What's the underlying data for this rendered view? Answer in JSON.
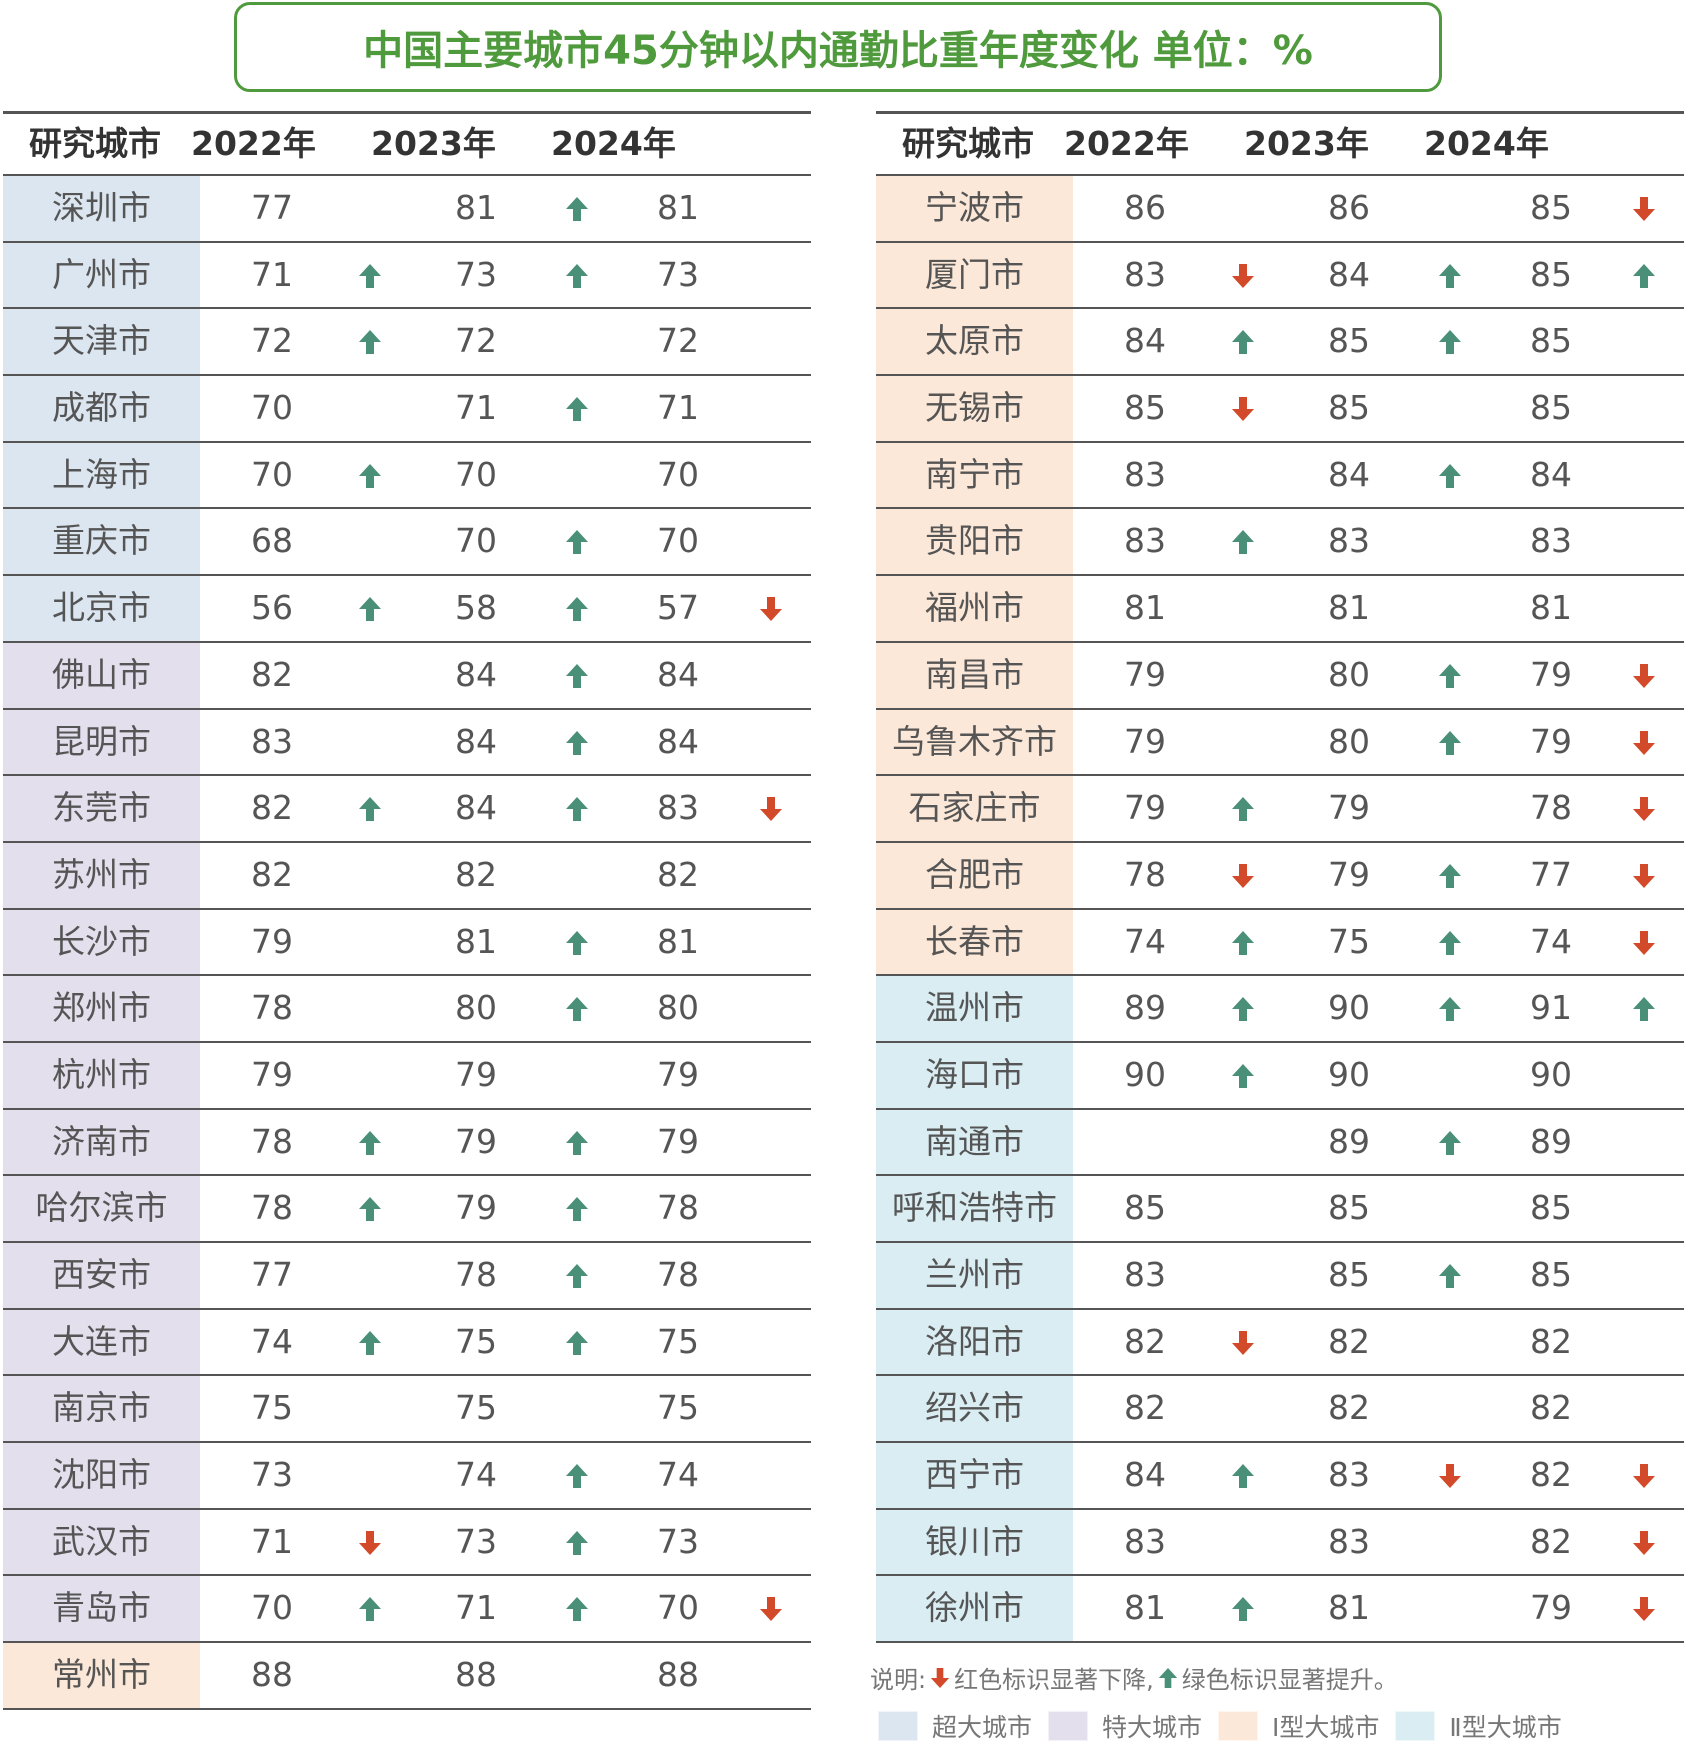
{
  "title": "中国主要城市45分钟以内通勤比重年度变化  单位：%",
  "headers": [
    "研究城市",
    "2022年",
    "2023年",
    "2024年"
  ],
  "colors": {
    "up": "#4a8f78",
    "down": "#d24a2a",
    "super": "#dce6f0",
    "mega": "#e3dfed",
    "type1": "#fce8d8",
    "type2": "#d9edf3"
  },
  "left": {
    "rows": [
      {
        "city": "深圳市",
        "type": "super",
        "v": [
          "77",
          "81",
          "81"
        ],
        "a": [
          "",
          "up",
          ""
        ]
      },
      {
        "city": "广州市",
        "type": "super",
        "v": [
          "71",
          "73",
          "73"
        ],
        "a": [
          "up",
          "up",
          ""
        ]
      },
      {
        "city": "天津市",
        "type": "super",
        "v": [
          "72",
          "72",
          "72"
        ],
        "a": [
          "up",
          "",
          ""
        ]
      },
      {
        "city": "成都市",
        "type": "super",
        "v": [
          "70",
          "71",
          "71"
        ],
        "a": [
          "",
          "up",
          ""
        ]
      },
      {
        "city": "上海市",
        "type": "super",
        "v": [
          "70",
          "70",
          "70"
        ],
        "a": [
          "up",
          "",
          ""
        ]
      },
      {
        "city": "重庆市",
        "type": "super",
        "v": [
          "68",
          "70",
          "70"
        ],
        "a": [
          "",
          "up",
          ""
        ]
      },
      {
        "city": "北京市",
        "type": "super",
        "v": [
          "56",
          "58",
          "57"
        ],
        "a": [
          "up",
          "up",
          "down"
        ]
      },
      {
        "city": "佛山市",
        "type": "mega",
        "v": [
          "82",
          "84",
          "84"
        ],
        "a": [
          "",
          "up",
          ""
        ]
      },
      {
        "city": "昆明市",
        "type": "mega",
        "v": [
          "83",
          "84",
          "84"
        ],
        "a": [
          "",
          "up",
          ""
        ]
      },
      {
        "city": "东莞市",
        "type": "mega",
        "v": [
          "82",
          "84",
          "83"
        ],
        "a": [
          "up",
          "up",
          "down"
        ]
      },
      {
        "city": "苏州市",
        "type": "mega",
        "v": [
          "82",
          "82",
          "82"
        ],
        "a": [
          "",
          "",
          ""
        ]
      },
      {
        "city": "长沙市",
        "type": "mega",
        "v": [
          "79",
          "81",
          "81"
        ],
        "a": [
          "",
          "up",
          ""
        ]
      },
      {
        "city": "郑州市",
        "type": "mega",
        "v": [
          "78",
          "80",
          "80"
        ],
        "a": [
          "",
          "up",
          ""
        ]
      },
      {
        "city": "杭州市",
        "type": "mega",
        "v": [
          "79",
          "79",
          "79"
        ],
        "a": [
          "",
          "",
          ""
        ]
      },
      {
        "city": "济南市",
        "type": "mega",
        "v": [
          "78",
          "79",
          "79"
        ],
        "a": [
          "up",
          "up",
          ""
        ]
      },
      {
        "city": "哈尔滨市",
        "type": "mega",
        "v": [
          "78",
          "79",
          "78"
        ],
        "a": [
          "up",
          "up",
          ""
        ]
      },
      {
        "city": "西安市",
        "type": "mega",
        "v": [
          "77",
          "78",
          "78"
        ],
        "a": [
          "",
          "up",
          ""
        ]
      },
      {
        "city": "大连市",
        "type": "mega",
        "v": [
          "74",
          "75",
          "75"
        ],
        "a": [
          "up",
          "up",
          ""
        ]
      },
      {
        "city": "南京市",
        "type": "mega",
        "v": [
          "75",
          "75",
          "75"
        ],
        "a": [
          "",
          "",
          ""
        ]
      },
      {
        "city": "沈阳市",
        "type": "mega",
        "v": [
          "73",
          "74",
          "74"
        ],
        "a": [
          "",
          "up",
          ""
        ]
      },
      {
        "city": "武汉市",
        "type": "mega",
        "v": [
          "71",
          "73",
          "73"
        ],
        "a": [
          "down",
          "up",
          ""
        ]
      },
      {
        "city": "青岛市",
        "type": "mega",
        "v": [
          "70",
          "71",
          "70"
        ],
        "a": [
          "up",
          "up",
          "down"
        ]
      },
      {
        "city": "常州市",
        "type": "type1",
        "v": [
          "88",
          "88",
          "88"
        ],
        "a": [
          "",
          "",
          ""
        ]
      }
    ]
  },
  "right": {
    "rows": [
      {
        "city": "宁波市",
        "type": "type1",
        "v": [
          "86",
          "86",
          "85"
        ],
        "a": [
          "",
          "",
          "down"
        ]
      },
      {
        "city": "厦门市",
        "type": "type1",
        "v": [
          "83",
          "84",
          "85"
        ],
        "a": [
          "down",
          "up",
          "up"
        ]
      },
      {
        "city": "太原市",
        "type": "type1",
        "v": [
          "84",
          "85",
          "85"
        ],
        "a": [
          "up",
          "up",
          ""
        ]
      },
      {
        "city": "无锡市",
        "type": "type1",
        "v": [
          "85",
          "85",
          "85"
        ],
        "a": [
          "down",
          "",
          ""
        ]
      },
      {
        "city": "南宁市",
        "type": "type1",
        "v": [
          "83",
          "84",
          "84"
        ],
        "a": [
          "",
          "up",
          ""
        ]
      },
      {
        "city": "贵阳市",
        "type": "type1",
        "v": [
          "83",
          "83",
          "83"
        ],
        "a": [
          "up",
          "",
          ""
        ]
      },
      {
        "city": "福州市",
        "type": "type1",
        "v": [
          "81",
          "81",
          "81"
        ],
        "a": [
          "",
          "",
          ""
        ]
      },
      {
        "city": "南昌市",
        "type": "type1",
        "v": [
          "79",
          "80",
          "79"
        ],
        "a": [
          "",
          "up",
          "down"
        ]
      },
      {
        "city": "乌鲁木齐市",
        "type": "type1",
        "v": [
          "79",
          "80",
          "79"
        ],
        "a": [
          "",
          "up",
          "down"
        ]
      },
      {
        "city": "石家庄市",
        "type": "type1",
        "v": [
          "79",
          "79",
          "78"
        ],
        "a": [
          "up",
          "",
          "down"
        ]
      },
      {
        "city": "合肥市",
        "type": "type1",
        "v": [
          "78",
          "79",
          "77"
        ],
        "a": [
          "down",
          "up",
          "down"
        ]
      },
      {
        "city": "长春市",
        "type": "type1",
        "v": [
          "74",
          "75",
          "74"
        ],
        "a": [
          "up",
          "up",
          "down"
        ]
      },
      {
        "city": "温州市",
        "type": "type2",
        "v": [
          "89",
          "90",
          "91"
        ],
        "a": [
          "up",
          "up",
          "up"
        ]
      },
      {
        "city": "海口市",
        "type": "type2",
        "v": [
          "90",
          "90",
          "90"
        ],
        "a": [
          "up",
          "",
          ""
        ]
      },
      {
        "city": "南通市",
        "type": "type2",
        "v": [
          "",
          "89",
          "89"
        ],
        "a": [
          "",
          "up",
          ""
        ]
      },
      {
        "city": "呼和浩特市",
        "type": "type2",
        "v": [
          "85",
          "85",
          "85"
        ],
        "a": [
          "",
          "",
          ""
        ]
      },
      {
        "city": "兰州市",
        "type": "type2",
        "v": [
          "83",
          "85",
          "85"
        ],
        "a": [
          "",
          "up",
          ""
        ]
      },
      {
        "city": "洛阳市",
        "type": "type2",
        "v": [
          "82",
          "82",
          "82"
        ],
        "a": [
          "down",
          "",
          ""
        ]
      },
      {
        "city": "绍兴市",
        "type": "type2",
        "v": [
          "82",
          "82",
          "82"
        ],
        "a": [
          "",
          "",
          ""
        ]
      },
      {
        "city": "西宁市",
        "type": "type2",
        "v": [
          "84",
          "83",
          "82"
        ],
        "a": [
          "up",
          "down",
          "down"
        ]
      },
      {
        "city": "银川市",
        "type": "type2",
        "v": [
          "83",
          "83",
          "82"
        ],
        "a": [
          "",
          "",
          "down"
        ]
      },
      {
        "city": "徐州市",
        "type": "type2",
        "v": [
          "81",
          "81",
          "79"
        ],
        "a": [
          "up",
          "",
          "down"
        ]
      }
    ]
  },
  "note": {
    "prefix": "说明:",
    "down_text": "红色标识显著下降,",
    "up_text": "绿色标识显著提升。"
  },
  "legend": [
    {
      "key": "super",
      "label": "超大城市"
    },
    {
      "key": "mega",
      "label": "特大城市"
    },
    {
      "key": "type1",
      "label": "Ⅰ型大城市"
    },
    {
      "key": "type2",
      "label": "Ⅱ型大城市"
    }
  ]
}
